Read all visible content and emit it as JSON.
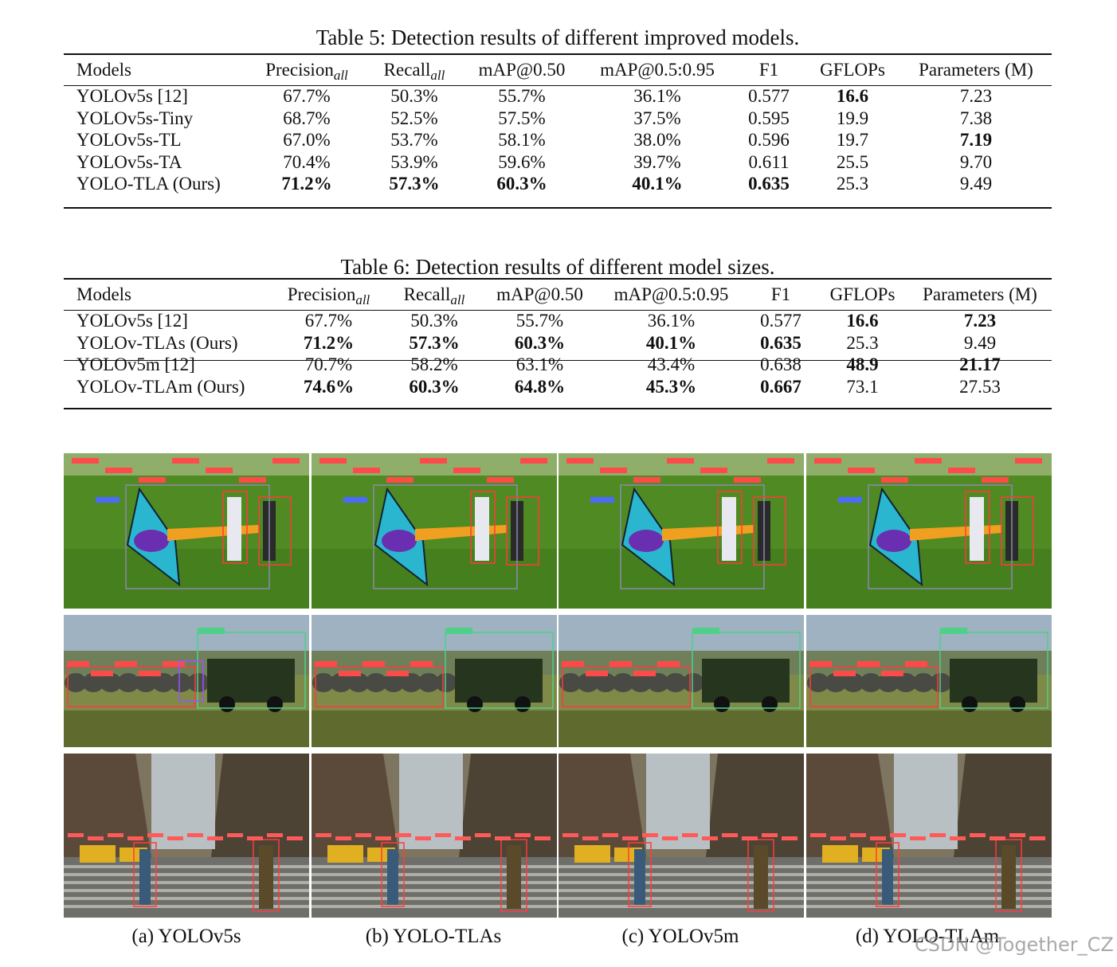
{
  "table5": {
    "caption": "Table 5: Detection results of different improved models.",
    "headers": [
      "Models",
      "Precision",
      "Recall",
      "mAP@0.50",
      "mAP@0.5:0.95",
      "F1",
      "GFLOPs",
      "Parameters (M)"
    ],
    "sub_all": "all",
    "rows": [
      [
        "YOLOv5s [12]",
        "67.7%",
        "50.3%",
        "55.7%",
        "36.1%",
        "0.577",
        "16.6",
        "7.23"
      ],
      [
        "YOLOv5s-Tiny",
        "68.7%",
        "52.5%",
        "57.5%",
        "37.5%",
        "0.595",
        "19.9",
        "7.38"
      ],
      [
        "YOLOv5s-TL",
        "67.0%",
        "53.7%",
        "58.1%",
        "38.0%",
        "0.596",
        "19.7",
        "7.19"
      ],
      [
        "YOLOv5s-TA",
        "70.4%",
        "53.9%",
        "59.6%",
        "39.7%",
        "0.611",
        "25.5",
        "9.70"
      ],
      [
        "YOLO-TLA (Ours)",
        "71.2%",
        "57.3%",
        "60.3%",
        "40.1%",
        "0.635",
        "25.3",
        "9.49"
      ]
    ]
  },
  "table6": {
    "caption": "Table 6: Detection results of different model sizes.",
    "headers": [
      "Models",
      "Precision",
      "Recall",
      "mAP@0.50",
      "mAP@0.5:0.95",
      "F1",
      "GFLOPs",
      "Parameters (M)"
    ],
    "sub_all": "all",
    "rows": [
      [
        "YOLOv5s [12]",
        "67.7%",
        "50.3%",
        "55.7%",
        "36.1%",
        "0.577",
        "16.6",
        "7.23"
      ],
      [
        "YOLOv-TLAs (Ours)",
        "71.2%",
        "57.3%",
        "60.3%",
        "40.1%",
        "0.635",
        "25.3",
        "9.49"
      ],
      [
        "YOLOv5m [12]",
        "70.7%",
        "58.2%",
        "63.1%",
        "43.4%",
        "0.638",
        "48.9",
        "21.17"
      ],
      [
        "YOLOv-TLAm (Ours)",
        "74.6%",
        "60.3%",
        "64.8%",
        "45.3%",
        "0.667",
        "73.1",
        "27.53"
      ]
    ]
  },
  "figure": {
    "subcaptions": [
      "(a)  YOLOv5s",
      "(b)  YOLO-TLAs",
      "(c)  YOLOv5m",
      "(d)  YOLO-TLAm"
    ],
    "row1_labels": [
      "person",
      "chair",
      "kite"
    ],
    "row2_labels": [
      "truck 0.69",
      "elephant 0.83",
      "horse 0.59"
    ],
    "row3_labels": [
      "person",
      "car"
    ]
  },
  "watermark": "CSDN @Together_CZ"
}
